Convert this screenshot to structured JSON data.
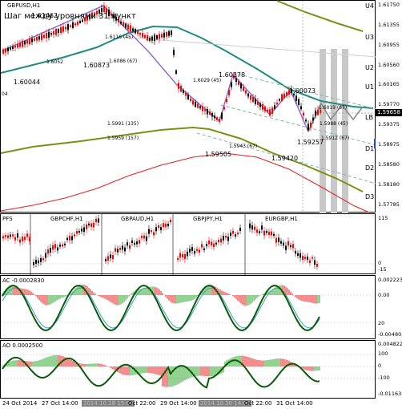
{
  "chart": {
    "symbol_label": "GBPUSD,H1",
    "subtitle": "Шаг между уровнями 31 пункт",
    "last_price": "1.59658",
    "price_scale": [
      "1.61750",
      "1.61355",
      "1.60955",
      "1.60560",
      "1.60165",
      "1.59770",
      "1.59375",
      "1.58975",
      "1.58580",
      "1.58180",
      "1.57785"
    ],
    "levels": [
      {
        "code": "U4",
        "value": "1.61750"
      },
      {
        "code": "U3",
        "value": "1.61355"
      },
      {
        "code": "U2",
        "value": "1.60955"
      },
      {
        "code": "U1",
        "value": "1.60560"
      },
      {
        "code": "LB",
        "value": "1.59658"
      },
      {
        "code": "D1",
        "value": "1.59375"
      },
      {
        "code": "D2",
        "value": "1.58975"
      },
      {
        "code": "D3",
        "value": "1.58580"
      }
    ],
    "annotations": [
      "1.61462",
      "1.60873",
      "1.6052",
      "1.60044",
      "1.6086 (67)",
      "1.6116 (45)",
      "1.6029 (45)",
      "1.60378",
      "1.5991 (135)",
      "1.5959 (157)",
      "1.59505",
      "1.5943 (67)",
      "1.59420",
      "1.60073",
      "1.6019 (67)",
      "1.5988 (45)",
      "1.59257",
      "1.5912 (67)",
      "04"
    ],
    "colors": {
      "candle_up": "#000000",
      "candle_down": "#ff0000",
      "zigzag": "#8c6cd8",
      "ma_teal": "#1e8c7e",
      "ma_olive": "#7d8f12",
      "ma_red": "#e81e1e",
      "channel": "#7ab3b3"
    }
  },
  "cross_pairs": {
    "label": "PFS",
    "pairs": [
      "GBPCHF,H1",
      "GBPAUD,H1",
      "GBPJPY,H1",
      "EURGBP,H1"
    ],
    "scale": [
      "115",
      "0",
      "-15"
    ]
  },
  "ac_panel": {
    "label": "AC -0.0002830",
    "scale": [
      "0.002223",
      "0.00",
      "20",
      "-0.004805"
    ]
  },
  "ao_panel": {
    "label": "AO 0.0002500",
    "scale": [
      "0.004822",
      "100",
      "0",
      "-100",
      "-0.011635"
    ]
  },
  "time_axis": {
    "labels": [
      "24 Oct 2014",
      "27 Oct 14:00",
      "2014.10.28 15:00",
      "Oct 22:00",
      "29 Oct 14:00",
      "2014.10.30 14:00",
      "Oct 22:00",
      "31 Oct 14:00"
    ]
  }
}
